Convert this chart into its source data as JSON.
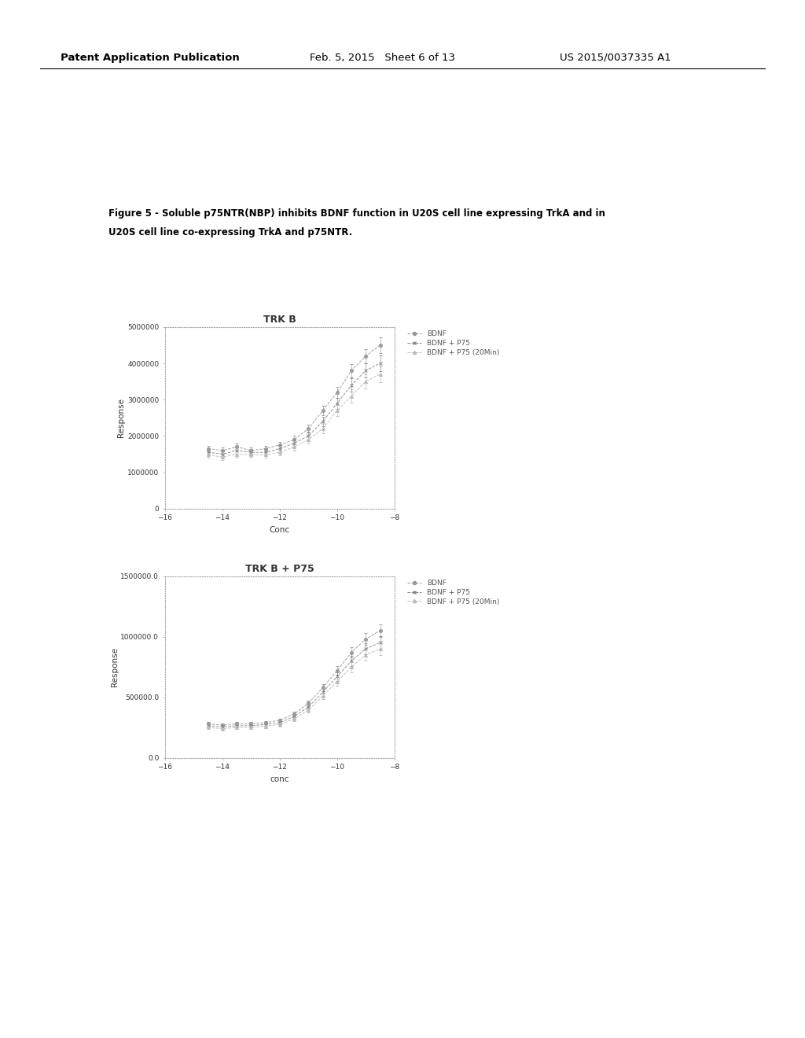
{
  "header_left": "Patent Application Publication",
  "header_mid": "Feb. 5, 2015   Sheet 6 of 13",
  "header_right": "US 2015/0037335 A1",
  "figure_caption_line1": "Figure 5 - Soluble p75NTR(NBP) inhibits BDNF function in U20S cell line expressing TrkA and in",
  "figure_caption_line2": "U20S cell line co-expressing TrkA and p75NTR.",
  "plot1": {
    "title": "TRK B",
    "xlabel": "Conc",
    "ylabel": "Response",
    "xlim": [
      -16,
      -8
    ],
    "ylim": [
      0,
      5000000
    ],
    "yticks": [
      0,
      1000000,
      2000000,
      3000000,
      4000000,
      5000000
    ],
    "ytick_labels": [
      "0",
      "1000000",
      "2000000",
      "3000000",
      "4000000",
      "5000000"
    ],
    "xticks": [
      -16,
      -14,
      -12,
      -10,
      -8
    ],
    "series": {
      "BDNF": {
        "x": [
          -14.5,
          -14.0,
          -13.5,
          -13.0,
          -12.5,
          -12.0,
          -11.5,
          -11.0,
          -10.5,
          -10.0,
          -9.5,
          -9.0,
          -8.5
        ],
        "y": [
          1650000,
          1600000,
          1700000,
          1600000,
          1650000,
          1750000,
          1900000,
          2200000,
          2700000,
          3200000,
          3800000,
          4200000,
          4500000
        ],
        "yerr": [
          80000,
          80000,
          90000,
          80000,
          80000,
          90000,
          100000,
          110000,
          130000,
          150000,
          180000,
          200000,
          220000
        ]
      },
      "BDNF + P75": {
        "x": [
          -14.5,
          -14.0,
          -13.5,
          -13.0,
          -12.5,
          -12.0,
          -11.5,
          -11.0,
          -10.5,
          -10.0,
          -9.5,
          -9.0,
          -8.5
        ],
        "y": [
          1550000,
          1500000,
          1600000,
          1550000,
          1550000,
          1650000,
          1800000,
          2000000,
          2400000,
          2900000,
          3400000,
          3800000,
          4000000
        ],
        "yerr": [
          80000,
          80000,
          90000,
          80000,
          80000,
          90000,
          100000,
          110000,
          130000,
          150000,
          180000,
          200000,
          220000
        ]
      },
      "BDNF + P75 (20Min)": {
        "x": [
          -14.5,
          -14.0,
          -13.5,
          -13.0,
          -12.5,
          -12.0,
          -11.5,
          -11.0,
          -10.5,
          -10.0,
          -9.5,
          -9.0,
          -8.5
        ],
        "y": [
          1480000,
          1420000,
          1500000,
          1480000,
          1480000,
          1550000,
          1700000,
          1900000,
          2200000,
          2700000,
          3100000,
          3500000,
          3700000
        ],
        "yerr": [
          80000,
          80000,
          90000,
          80000,
          80000,
          90000,
          100000,
          110000,
          130000,
          150000,
          180000,
          200000,
          220000
        ]
      }
    }
  },
  "plot2": {
    "title": "TRK B + P75",
    "xlabel": "conc",
    "ylabel": "Response",
    "xlim": [
      -16,
      -8
    ],
    "ylim": [
      0.0,
      1500000.0
    ],
    "yticks": [
      0.0,
      500000.0,
      1000000.0,
      1500000.0
    ],
    "ytick_labels": [
      "0.0",
      "500000.0",
      "1000000.0",
      "1500000.0"
    ],
    "xticks": [
      -16,
      -14,
      -12,
      -10,
      -8
    ],
    "series": {
      "BDNF": {
        "x": [
          -14.5,
          -14.0,
          -13.5,
          -13.0,
          -12.5,
          -12.0,
          -11.5,
          -11.0,
          -10.5,
          -10.0,
          -9.5,
          -9.0,
          -8.5
        ],
        "y": [
          280000,
          270000,
          280000,
          280000,
          290000,
          310000,
          360000,
          450000,
          580000,
          720000,
          870000,
          980000,
          1050000
        ],
        "yerr": [
          15000,
          15000,
          15000,
          15000,
          15000,
          15000,
          18000,
          22000,
          28000,
          35000,
          42000,
          48000,
          52000
        ]
      },
      "BDNF + P75": {
        "x": [
          -14.5,
          -14.0,
          -13.5,
          -13.0,
          -12.5,
          -12.0,
          -11.5,
          -11.0,
          -10.5,
          -10.0,
          -9.5,
          -9.0,
          -8.5
        ],
        "y": [
          265000,
          255000,
          265000,
          265000,
          275000,
          290000,
          340000,
          420000,
          540000,
          670000,
          800000,
          900000,
          950000
        ],
        "yerr": [
          15000,
          15000,
          15000,
          15000,
          15000,
          15000,
          18000,
          22000,
          28000,
          35000,
          42000,
          48000,
          52000
        ]
      },
      "BDNF + P75 (20Min)": {
        "x": [
          -14.5,
          -14.0,
          -13.5,
          -13.0,
          -12.5,
          -12.0,
          -11.5,
          -11.0,
          -10.5,
          -10.0,
          -9.5,
          -9.0,
          -8.5
        ],
        "y": [
          250000,
          240000,
          250000,
          250000,
          260000,
          275000,
          320000,
          395000,
          510000,
          630000,
          750000,
          850000,
          900000
        ],
        "yerr": [
          15000,
          15000,
          15000,
          15000,
          15000,
          15000,
          18000,
          22000,
          28000,
          35000,
          42000,
          48000,
          52000
        ]
      }
    }
  },
  "background_color": "#ffffff",
  "text_color": "#000000",
  "gray_color": "#888888",
  "light_gray": "#aaaaaa"
}
